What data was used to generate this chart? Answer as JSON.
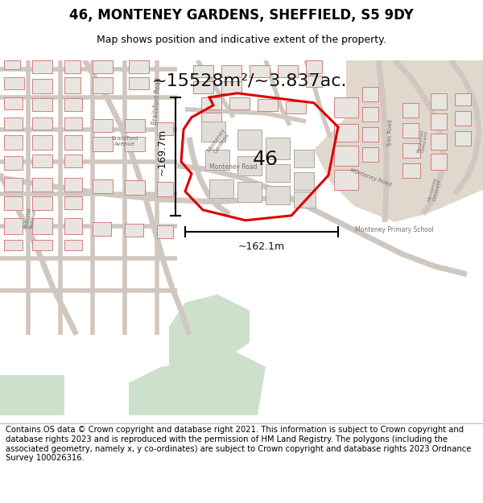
{
  "title": "46, MONTENEY GARDENS, SHEFFIELD, S5 9DY",
  "subtitle": "Map shows position and indicative extent of the property.",
  "area_text": "~15528m²/~3.837ac.",
  "dimension_h": "~169.7m",
  "dimension_w": "~162.1m",
  "label_46": "46",
  "footer": "Contains OS data © Crown copyright and database right 2021. This information is subject to Crown copyright and database rights 2023 and is reproduced with the permission of HM Land Registry. The polygons (including the associated geometry, namely x, y co-ordinates) are subject to Crown copyright and database rights 2023 Ordnance Survey 100026316.",
  "map_bg": "#f9f7f5",
  "building_stroke": "#d08080",
  "building_fill": "#e8e4e0",
  "highlight_fill": "none",
  "highlight_stroke": "#dd0000",
  "green_fill": "#cce0cc",
  "tan_fill": "#e0d8cc",
  "fig_bg": "#ffffff",
  "street_color": "#c8c0b8",
  "title_fontsize": 12,
  "subtitle_fontsize": 9,
  "footer_fontsize": 7.2,
  "area_fontsize": 16,
  "dim_fontsize": 9,
  "label_fontsize": 18
}
